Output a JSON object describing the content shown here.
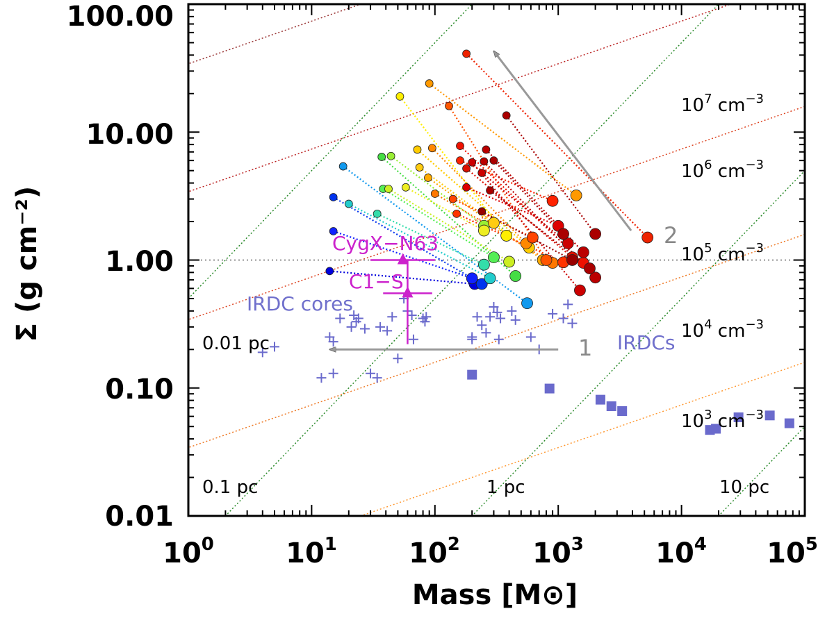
{
  "chart_data": {
    "type": "scatter",
    "title": "",
    "xlabel": "Mass [M⊙]",
    "ylabel": "Σ (g cm⁻²)",
    "xscale": "log",
    "yscale": "log",
    "xlim": [
      1,
      100000
    ],
    "ylim": [
      0.01,
      100
    ],
    "x_tick_labels": [
      {
        "value": 1,
        "base": "10",
        "exp": "0"
      },
      {
        "value": 10,
        "base": "10",
        "exp": "1"
      },
      {
        "value": 100,
        "base": "10",
        "exp": "2"
      },
      {
        "value": 1000,
        "base": "10",
        "exp": "3"
      },
      {
        "value": 10000,
        "base": "10",
        "exp": "4"
      },
      {
        "value": 100000,
        "base": "10",
        "exp": "5"
      }
    ],
    "y_tick_labels": [
      {
        "value": 0.01,
        "label": "0.01"
      },
      {
        "value": 0.1,
        "label": "0.10"
      },
      {
        "value": 1,
        "label": "1.00"
      },
      {
        "value": 10,
        "label": "10.00"
      },
      {
        "value": 100,
        "label": "100.00"
      }
    ],
    "reference_lines": {
      "sigma_one": 1.0,
      "density_labels": [
        {
          "base": "10",
          "exp": "7",
          "unit": " cm",
          "unit_exp": "−3"
        },
        {
          "base": "10",
          "exp": "6",
          "unit": " cm",
          "unit_exp": "−3"
        },
        {
          "base": "10",
          "exp": "5",
          "unit": " cm",
          "unit_exp": "−3"
        },
        {
          "base": "10",
          "exp": "4",
          "unit": " cm",
          "unit_exp": "−3"
        },
        {
          "base": "10",
          "exp": "3",
          "unit": " cm",
          "unit_exp": "−3"
        }
      ],
      "radius_labels": [
        "0.01 pc",
        "0.1 pc",
        "1 pc",
        "10 pc"
      ]
    },
    "series_labels": {
      "irdc_cores": "IRDC cores",
      "irdcs": "IRDCs",
      "cygx": "CygX−N63",
      "c1s": "C1−S",
      "arrow1": "1",
      "arrow2": "2"
    },
    "irdc_cores": [
      [
        4,
        0.19
      ],
      [
        5,
        0.21
      ],
      [
        14,
        0.25
      ],
      [
        15,
        0.23
      ],
      [
        12,
        0.12
      ],
      [
        15,
        0.13
      ],
      [
        17,
        0.35
      ],
      [
        22,
        0.37
      ],
      [
        23,
        0.33
      ],
      [
        24,
        0.35
      ],
      [
        21,
        0.3
      ],
      [
        27,
        0.29
      ],
      [
        30,
        0.13
      ],
      [
        34,
        0.12
      ],
      [
        36,
        0.3
      ],
      [
        41,
        0.28
      ],
      [
        45,
        0.36
      ],
      [
        50,
        0.17
      ],
      [
        56,
        0.5
      ],
      [
        60,
        0.4
      ],
      [
        65,
        0.37
      ],
      [
        67,
        0.24
      ],
      [
        80,
        0.35
      ],
      [
        83,
        0.33
      ],
      [
        85,
        0.36
      ],
      [
        200,
        0.25
      ],
      [
        220,
        0.36
      ],
      [
        240,
        0.31
      ],
      [
        260,
        0.27
      ],
      [
        280,
        0.36
      ],
      [
        300,
        0.43
      ],
      [
        320,
        0.39
      ],
      [
        330,
        0.24
      ],
      [
        340,
        0.35
      ],
      [
        420,
        0.4
      ],
      [
        450,
        0.34
      ],
      [
        600,
        0.25
      ],
      [
        700,
        0.2
      ],
      [
        900,
        0.38
      ],
      [
        1100,
        0.35
      ],
      [
        1200,
        0.45
      ],
      [
        1300,
        0.32
      ],
      [
        200,
        0.24
      ]
    ],
    "irdcs": [
      [
        200,
        0.127
      ],
      [
        850,
        0.099
      ],
      [
        2200,
        0.081
      ],
      [
        2700,
        0.072
      ],
      [
        3300,
        0.066
      ],
      [
        17000,
        0.047
      ],
      [
        19000,
        0.048
      ],
      [
        29000,
        0.059
      ],
      [
        52000,
        0.061
      ],
      [
        75000,
        0.053
      ]
    ],
    "cygx": {
      "mass": 55,
      "sigma": 1.0,
      "xerr": [
        30,
        100
      ]
    },
    "c1s": {
      "mass": 60,
      "sigma": 0.55,
      "xerr": [
        38,
        95
      ],
      "yerr": [
        0.22,
        1.0
      ]
    },
    "clump_tracks": [
      {
        "color": "#0000dd",
        "start": [
          14,
          0.82
        ],
        "end": [
          210,
          0.65
        ]
      },
      {
        "color": "#1122ff",
        "start": [
          15,
          1.68
        ],
        "end": [
          200,
          0.72
        ]
      },
      {
        "color": "#0033ee",
        "start": [
          15,
          3.1
        ],
        "end": [
          240,
          0.65
        ]
      },
      {
        "color": "#1199ee",
        "start": [
          18,
          5.4
        ],
        "end": [
          560,
          0.46
        ]
      },
      {
        "color": "#22cccc",
        "start": [
          20,
          2.75
        ],
        "end": [
          280,
          0.72
        ]
      },
      {
        "color": "#33ddaa",
        "start": [
          34,
          2.3
        ],
        "end": [
          250,
          0.92
        ]
      },
      {
        "color": "#55ee55",
        "start": [
          38,
          3.6
        ],
        "end": [
          300,
          1.05
        ]
      },
      {
        "color": "#44dd44",
        "start": [
          37,
          6.4
        ],
        "end": [
          450,
          0.75
        ]
      },
      {
        "color": "#99ee33",
        "start": [
          44,
          6.5
        ],
        "end": [
          250,
          1.85
        ]
      },
      {
        "color": "#ccee22",
        "start": [
          42,
          3.6
        ],
        "end": [
          400,
          0.97
        ]
      },
      {
        "color": "#eeee22",
        "start": [
          58,
          3.7
        ],
        "end": [
          250,
          1.7
        ]
      },
      {
        "color": "#ffee00",
        "start": [
          52,
          19
        ],
        "end": [
          380,
          1.55
        ]
      },
      {
        "color": "#ffcc00",
        "start": [
          72,
          7.3
        ],
        "end": [
          580,
          1.25
        ]
      },
      {
        "color": "#ffcc11",
        "start": [
          75,
          5.3
        ],
        "end": [
          300,
          1.95
        ]
      },
      {
        "color": "#ffaa00",
        "start": [
          88,
          4.4
        ],
        "end": [
          750,
          1.0
        ]
      },
      {
        "color": "#ff9900",
        "start": [
          90,
          24
        ],
        "end": [
          1400,
          3.2
        ]
      },
      {
        "color": "#ff8800",
        "start": [
          95,
          7.5
        ],
        "end": [
          550,
          1.35
        ]
      },
      {
        "color": "#ff7700",
        "start": [
          100,
          3.3
        ],
        "end": [
          900,
          0.95
        ]
      },
      {
        "color": "#ff5500",
        "start": [
          130,
          16
        ],
        "end": [
          800,
          1.0
        ]
      },
      {
        "color": "#ff4400",
        "start": [
          140,
          3.0
        ],
        "end": [
          620,
          1.5
        ]
      },
      {
        "color": "#ff3300",
        "start": [
          150,
          2.3
        ],
        "end": [
          1100,
          0.96
        ]
      },
      {
        "color": "#ff2200",
        "start": [
          160,
          6.0
        ],
        "end": [
          900,
          2.9
        ]
      },
      {
        "color": "#ee2200",
        "start": [
          180,
          41
        ],
        "end": [
          5300,
          1.5
        ]
      },
      {
        "color": "#ee1100",
        "start": [
          160,
          7.8
        ],
        "end": [
          1600,
          0.95
        ]
      },
      {
        "color": "#dd1100",
        "start": [
          180,
          5.2
        ],
        "end": [
          1300,
          1.05
        ]
      },
      {
        "color": "#dd0000",
        "start": [
          180,
          3.7
        ],
        "end": [
          1000,
          1.85
        ]
      },
      {
        "color": "#cc0000",
        "start": [
          200,
          5.8
        ],
        "end": [
          1500,
          0.58
        ]
      },
      {
        "color": "#cc0000",
        "start": [
          240,
          4.8
        ],
        "end": [
          1200,
          1.35
        ]
      },
      {
        "color": "#bb0000",
        "start": [
          250,
          5.9
        ],
        "end": [
          2000,
          0.73
        ]
      },
      {
        "color": "#bb0000",
        "start": [
          260,
          7.3
        ],
        "end": [
          1600,
          1.15
        ]
      },
      {
        "color": "#aa0000",
        "start": [
          280,
          3.5
        ],
        "end": [
          1800,
          0.86
        ]
      },
      {
        "color": "#aa0000",
        "start": [
          380,
          13.5
        ],
        "end": [
          2000,
          1.6
        ]
      },
      {
        "color": "#990000",
        "start": [
          240,
          2.4
        ],
        "end": [
          1300,
          1.0
        ]
      },
      {
        "color": "#aa0000",
        "start": [
          300,
          6.0
        ],
        "end": [
          1100,
          1.6
        ]
      }
    ]
  }
}
